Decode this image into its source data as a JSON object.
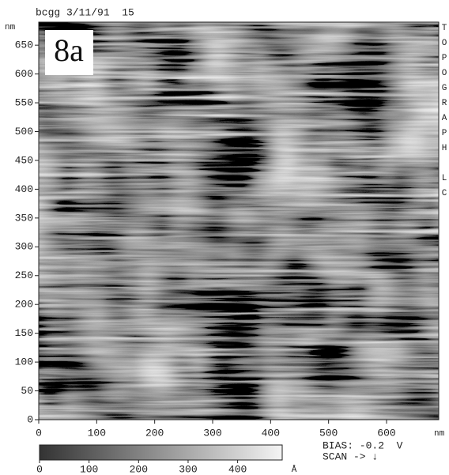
{
  "chart_data": {
    "type": "image",
    "header": "bcgg 3/11/91  15",
    "panel_label": "8a",
    "side_label": "TOPOGRAPH LC",
    "x_unit": "nm",
    "y_unit": "nm",
    "xlim": [
      0,
      690
    ],
    "ylim": [
      0,
      690
    ],
    "xticks": [
      0,
      100,
      200,
      300,
      400,
      500,
      600
    ],
    "yticks": [
      0,
      50,
      100,
      150,
      200,
      250,
      300,
      350,
      400,
      450,
      500,
      550,
      600,
      650
    ],
    "colorbar": {
      "lim": [
        0,
        490
      ],
      "ticks": [
        0,
        100,
        200,
        300,
        400
      ],
      "unit": "Å"
    },
    "bias_label": "BIAS: -0.2  V",
    "scan_label": "SCAN -> ↓"
  }
}
